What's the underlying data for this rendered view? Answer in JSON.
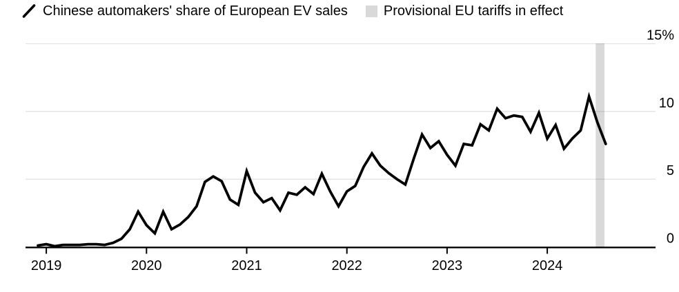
{
  "legend": {
    "series": {
      "icon": "series-slash-icon",
      "label": "Chinese automakers' share of European EV sales"
    },
    "band": {
      "icon": "band-swatch-icon",
      "label": "Provisional EU tariffs in effect"
    }
  },
  "colors": {
    "line": "#000000",
    "band": "#d9d9d9",
    "gridline": "rgba(0,0,0,0.11)",
    "axis": "#000000",
    "text": "#000000",
    "background": "#ffffff"
  },
  "y_axis": {
    "tick_labels": [
      "0",
      "5",
      "10",
      "15%"
    ],
    "tick_values": [
      0,
      5,
      10,
      15
    ]
  },
  "x_axis": {
    "tick_labels": [
      "2019",
      "2020",
      "2021",
      "2022",
      "2023",
      "2024"
    ]
  },
  "chart_data": {
    "type": "line",
    "title": "Chinese automakers' share of European EV sales",
    "unit": "%",
    "frequency": "monthly",
    "x_start": "2018-12",
    "x_end": "2024-08",
    "x": [
      "2018-12",
      "2019-01",
      "2019-02",
      "2019-03",
      "2019-04",
      "2019-05",
      "2019-06",
      "2019-07",
      "2019-08",
      "2019-09",
      "2019-10",
      "2019-11",
      "2019-12",
      "2020-01",
      "2020-02",
      "2020-03",
      "2020-04",
      "2020-05",
      "2020-06",
      "2020-07",
      "2020-08",
      "2020-09",
      "2020-10",
      "2020-11",
      "2020-12",
      "2021-01",
      "2021-02",
      "2021-03",
      "2021-04",
      "2021-05",
      "2021-06",
      "2021-07",
      "2021-08",
      "2021-09",
      "2021-10",
      "2021-11",
      "2021-12",
      "2022-01",
      "2022-02",
      "2022-03",
      "2022-04",
      "2022-05",
      "2022-06",
      "2022-07",
      "2022-08",
      "2022-09",
      "2022-10",
      "2022-11",
      "2022-12",
      "2023-01",
      "2023-02",
      "2023-03",
      "2023-04",
      "2023-05",
      "2023-06",
      "2023-07",
      "2023-08",
      "2023-09",
      "2023-10",
      "2023-11",
      "2023-12",
      "2024-01",
      "2024-02",
      "2024-03",
      "2024-04",
      "2024-05",
      "2024-06",
      "2024-07",
      "2024-08"
    ],
    "values": [
      0.1,
      0.2,
      0.05,
      0.15,
      0.15,
      0.15,
      0.2,
      0.2,
      0.15,
      0.3,
      0.6,
      1.3,
      2.6,
      1.6,
      1.0,
      2.6,
      1.3,
      1.65,
      2.2,
      3.0,
      4.8,
      5.2,
      4.85,
      3.5,
      3.1,
      5.6,
      4.0,
      3.3,
      3.6,
      2.7,
      4.0,
      3.85,
      4.4,
      3.9,
      5.4,
      4.1,
      3.0,
      4.1,
      4.5,
      5.9,
      6.9,
      6.0,
      5.45,
      5.0,
      4.6,
      6.5,
      8.3,
      7.3,
      7.8,
      6.8,
      6.0,
      7.6,
      7.5,
      9.05,
      8.6,
      10.2,
      9.5,
      9.7,
      9.6,
      8.5,
      9.9,
      8.0,
      9.0,
      7.25,
      8.0,
      8.6,
      11.1,
      9.2,
      7.6
    ],
    "ylim": [
      0,
      15
    ],
    "gridlines": [
      5,
      10,
      15
    ],
    "legend_position": "top-left",
    "tariff_band": {
      "from": "2024-07",
      "to": "2024-08",
      "label": "Provisional EU tariffs in effect"
    }
  }
}
